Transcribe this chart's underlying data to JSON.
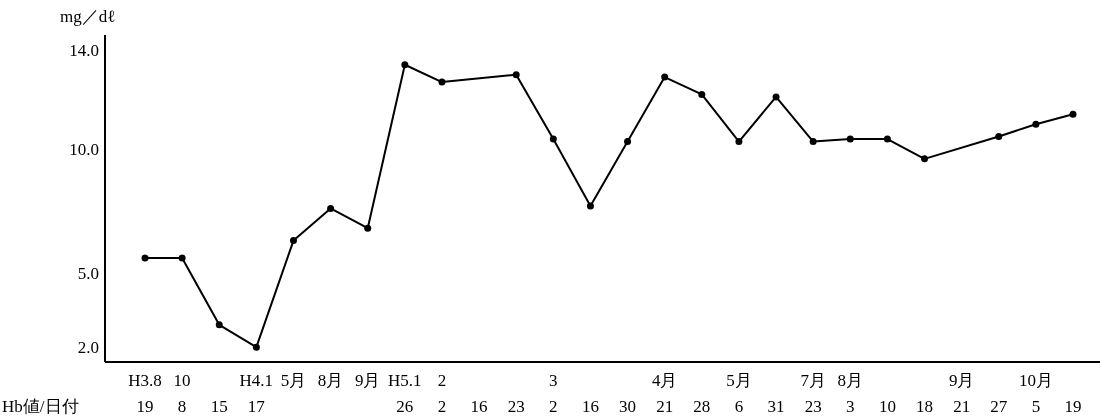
{
  "chart_data": {
    "type": "line",
    "ylabel": "mg／dℓ",
    "xlabel": "Hb値/日付",
    "categories": [
      "H3.8\n19",
      "10\n8",
      "\n15",
      "H4.1\n17",
      "5月\n",
      "8月\n",
      "9月\n",
      "H5.1\n26",
      "2\n2",
      "\n16",
      "\n23",
      "3\n2",
      "\n16",
      "\n30",
      "4月\n21",
      "\n28",
      "5月\n6",
      "\n31",
      "7月\n23",
      "8月\n3",
      "\n10",
      "\n18",
      "9月\n21",
      "\n27",
      "10月\n5",
      "\n19"
    ],
    "series": [
      {
        "color": "#000000",
        "values": [
          5.6,
          5.6,
          2.9,
          2.0,
          6.3,
          7.6,
          6.8,
          13.4,
          12.7,
          null,
          13.0,
          10.4,
          7.7,
          10.3,
          12.9,
          12.2,
          10.3,
          12.1,
          10.3,
          10.4,
          10.4,
          9.6,
          null,
          10.5,
          11.0,
          11.4
        ]
      }
    ],
    "ylim": [
      1.4,
      14.6
    ],
    "yticks": [
      {
        "value": 2,
        "label": "2.0"
      },
      {
        "value": 5,
        "label": "5.0"
      },
      {
        "value": 10,
        "label": "10.0"
      },
      {
        "value": 14,
        "label": "14.0"
      }
    ],
    "marker": "circle",
    "line_style": "solid",
    "grid": false
  }
}
